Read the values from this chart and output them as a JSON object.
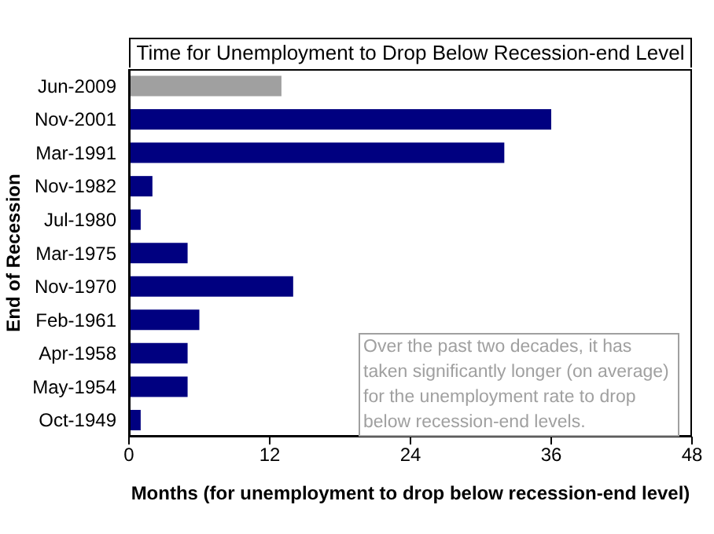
{
  "chart_data": {
    "type": "bar",
    "orientation": "horizontal",
    "subtitle": "Time for Unemployment to Drop Below Recession-end Level",
    "xlabel": "Months (for unemployment to drop below recession-end level)",
    "ylabel": "End of Recession",
    "categories": [
      "Jun-2009",
      "Nov-2001",
      "Mar-1991",
      "Nov-1982",
      "Jul-1980",
      "Mar-1975",
      "Nov-1970",
      "Feb-1961",
      "Apr-1958",
      "May-1954",
      "Oct-1949"
    ],
    "values": [
      13,
      36,
      32,
      2,
      1,
      5,
      14,
      6,
      5,
      5,
      1
    ],
    "colors": [
      "#a0a0a0",
      "#000080",
      "#000080",
      "#000080",
      "#000080",
      "#000080",
      "#000080",
      "#000080",
      "#000080",
      "#000080",
      "#000080"
    ],
    "xlim": [
      0,
      48
    ],
    "xticks": [
      0,
      12,
      24,
      36,
      48
    ],
    "annotations": [
      "Over the past two decades, it has taken significantly longer (on average) for the unemployment rate to drop below recession-end levels."
    ],
    "grid": false,
    "legend": false
  }
}
